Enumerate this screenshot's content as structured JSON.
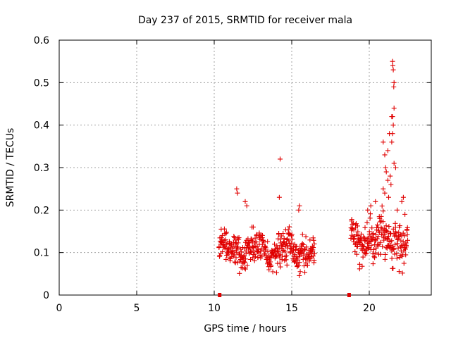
{
  "chart_data": {
    "type": "scatter",
    "title": "Day 237 of 2015, SRMTID for receiver mala",
    "xlabel": "GPS time / hours",
    "ylabel": "SRMTID / TECUs",
    "xlim": [
      0,
      24
    ],
    "ylim": [
      0,
      0.6
    ],
    "xticks": [
      0,
      5,
      10,
      15,
      20
    ],
    "yticks": [
      0,
      0.1,
      0.2,
      0.3,
      0.4,
      0.5,
      0.6
    ],
    "xtick_labels": [
      "0",
      "5",
      "10",
      "15",
      "20"
    ],
    "ytick_labels": [
      "0",
      "0.1",
      "0.2",
      "0.3",
      "0.4",
      "0.5",
      "0.6"
    ],
    "grid": true,
    "marker": "plus",
    "color": "#e00000",
    "segments": [
      {
        "start": 10.3,
        "end": 16.5,
        "base": 0.105,
        "spread": 0.03
      },
      {
        "start": 18.8,
        "end": 22.5,
        "base": 0.13,
        "spread": 0.04
      }
    ],
    "zero_markers": [
      10.35,
      18.7
    ],
    "outliers": [
      {
        "x": 14.25,
        "y": 0.32
      },
      {
        "x": 14.2,
        "y": 0.23
      },
      {
        "x": 11.45,
        "y": 0.25
      },
      {
        "x": 11.5,
        "y": 0.24
      },
      {
        "x": 12.0,
        "y": 0.22
      },
      {
        "x": 12.1,
        "y": 0.21
      },
      {
        "x": 15.5,
        "y": 0.21
      },
      {
        "x": 15.45,
        "y": 0.2
      },
      {
        "x": 21.5,
        "y": 0.55
      },
      {
        "x": 21.52,
        "y": 0.54
      },
      {
        "x": 21.55,
        "y": 0.53
      },
      {
        "x": 21.6,
        "y": 0.5
      },
      {
        "x": 21.58,
        "y": 0.49
      },
      {
        "x": 21.6,
        "y": 0.44
      },
      {
        "x": 21.45,
        "y": 0.42
      },
      {
        "x": 21.5,
        "y": 0.42
      },
      {
        "x": 21.55,
        "y": 0.4
      },
      {
        "x": 21.5,
        "y": 0.38
      },
      {
        "x": 21.3,
        "y": 0.38
      },
      {
        "x": 21.45,
        "y": 0.36
      },
      {
        "x": 20.9,
        "y": 0.36
      },
      {
        "x": 21.2,
        "y": 0.34
      },
      {
        "x": 21.0,
        "y": 0.33
      },
      {
        "x": 21.6,
        "y": 0.31
      },
      {
        "x": 21.7,
        "y": 0.3
      },
      {
        "x": 21.05,
        "y": 0.3
      },
      {
        "x": 21.1,
        "y": 0.29
      },
      {
        "x": 21.35,
        "y": 0.28
      },
      {
        "x": 21.2,
        "y": 0.27
      },
      {
        "x": 21.4,
        "y": 0.26
      },
      {
        "x": 20.9,
        "y": 0.25
      },
      {
        "x": 21.0,
        "y": 0.24
      },
      {
        "x": 21.25,
        "y": 0.23
      },
      {
        "x": 22.2,
        "y": 0.23
      },
      {
        "x": 22.1,
        "y": 0.22
      },
      {
        "x": 20.4,
        "y": 0.22
      },
      {
        "x": 20.1,
        "y": 0.21
      },
      {
        "x": 19.9,
        "y": 0.2
      },
      {
        "x": 21.8,
        "y": 0.2
      },
      {
        "x": 22.3,
        "y": 0.19
      }
    ]
  }
}
